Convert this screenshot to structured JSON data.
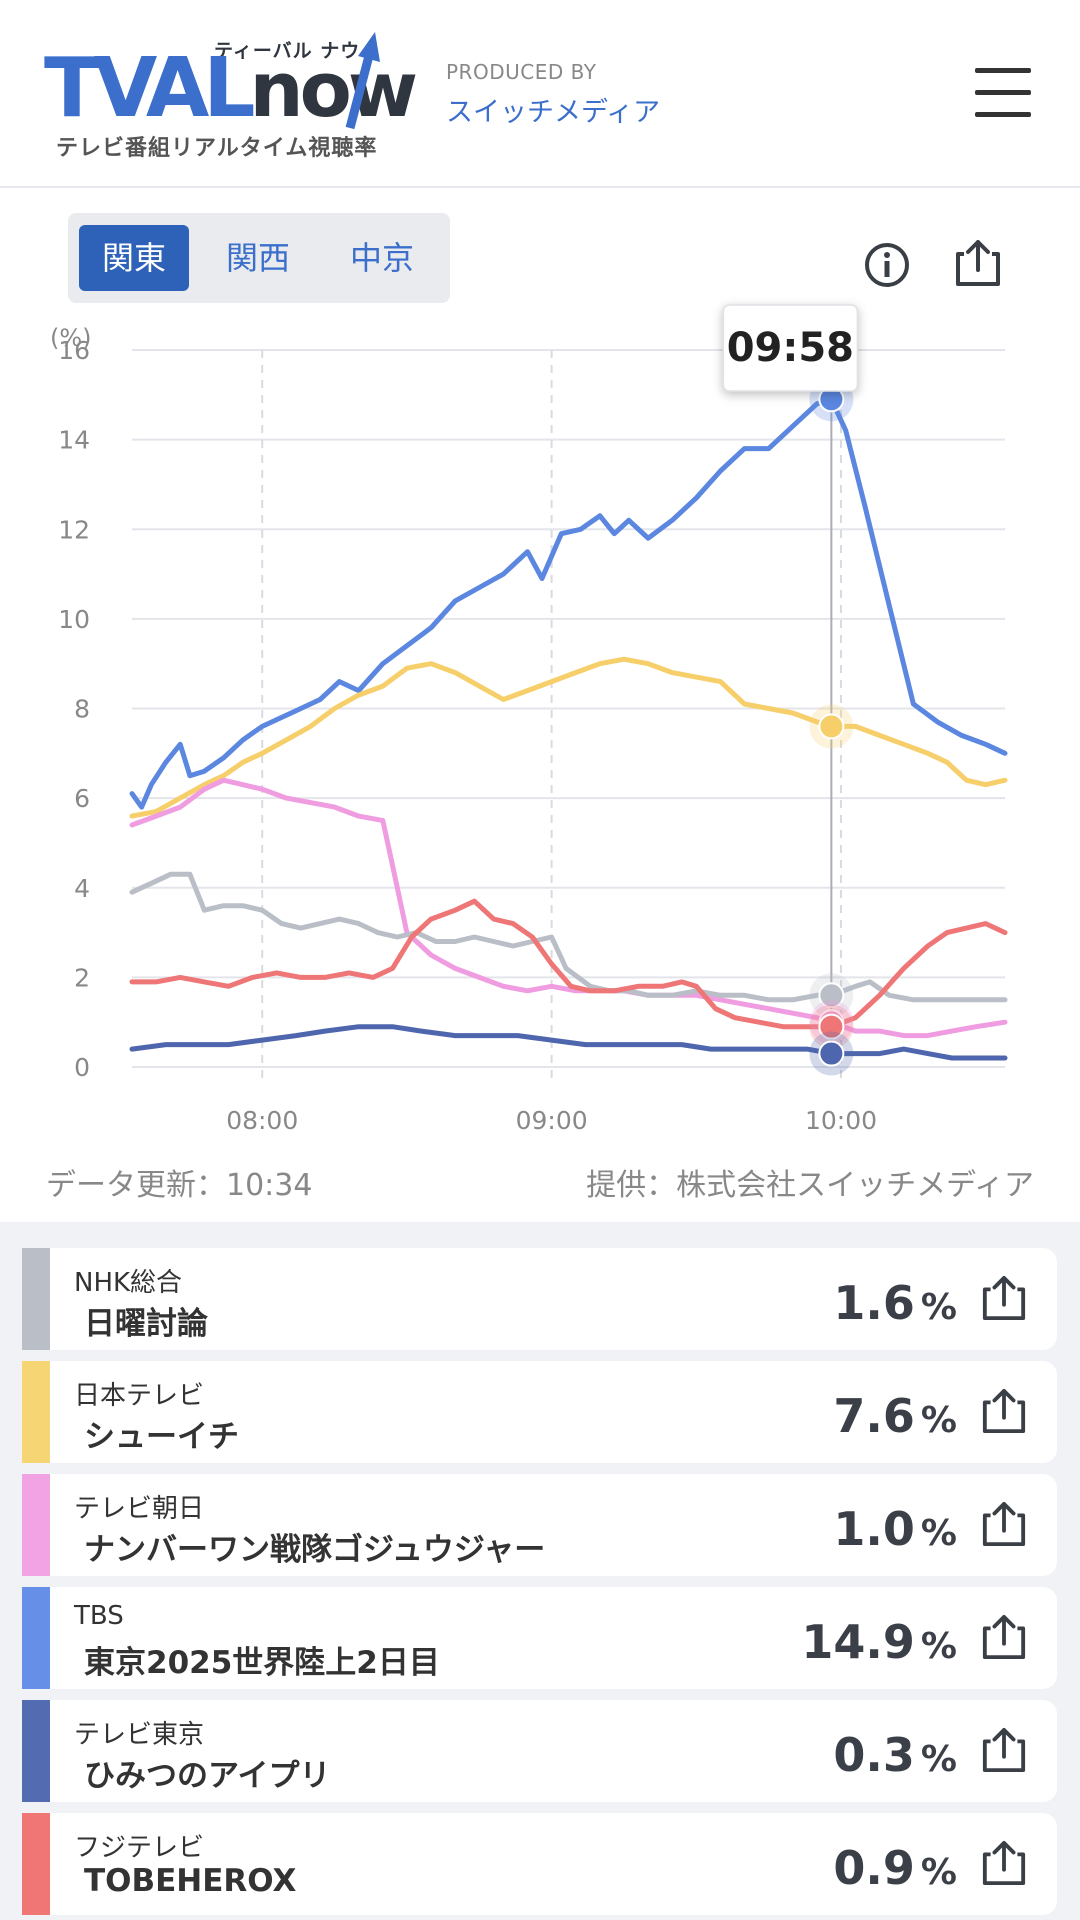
{
  "header": {
    "logo_main": "TVAL",
    "logo_now": "now",
    "logo_kana": "ティーバル ナウ",
    "logo_sub": "テレビ番組リアルタイム視聴率",
    "produced_by": "PRODUCED BY",
    "produced_name": "スイッチメディア"
  },
  "tabs": [
    {
      "label": "関東",
      "active": true
    },
    {
      "label": "関西",
      "active": false
    },
    {
      "label": "中京",
      "active": false
    }
  ],
  "chart_data": {
    "type": "line",
    "ylabel": "(%)",
    "ylim": [
      0,
      16
    ],
    "yticks": [
      0,
      2,
      4,
      6,
      8,
      10,
      12,
      14,
      16
    ],
    "xlim": [
      "07:33",
      "10:34"
    ],
    "xticks": [
      "08:00",
      "09:00",
      "10:00"
    ],
    "tooltip_time": "09:58",
    "grid": true,
    "series": [
      {
        "name": "TBS",
        "color": "#5b87e0",
        "points": [
          [
            "07:33",
            6.1
          ],
          [
            "07:35",
            5.8
          ],
          [
            "07:37",
            6.3
          ],
          [
            "07:40",
            6.8
          ],
          [
            "07:43",
            7.2
          ],
          [
            "07:45",
            6.5
          ],
          [
            "07:48",
            6.6
          ],
          [
            "07:52",
            6.9
          ],
          [
            "07:56",
            7.3
          ],
          [
            "08:00",
            7.6
          ],
          [
            "08:06",
            7.9
          ],
          [
            "08:12",
            8.2
          ],
          [
            "08:16",
            8.6
          ],
          [
            "08:20",
            8.4
          ],
          [
            "08:25",
            9.0
          ],
          [
            "08:30",
            9.4
          ],
          [
            "08:35",
            9.8
          ],
          [
            "08:40",
            10.4
          ],
          [
            "08:45",
            10.7
          ],
          [
            "08:50",
            11.0
          ],
          [
            "08:55",
            11.5
          ],
          [
            "08:58",
            10.9
          ],
          [
            "09:02",
            11.9
          ],
          [
            "09:06",
            12.0
          ],
          [
            "09:10",
            12.3
          ],
          [
            "09:13",
            11.9
          ],
          [
            "09:16",
            12.2
          ],
          [
            "09:20",
            11.8
          ],
          [
            "09:25",
            12.2
          ],
          [
            "09:30",
            12.7
          ],
          [
            "09:35",
            13.3
          ],
          [
            "09:40",
            13.8
          ],
          [
            "09:45",
            13.8
          ],
          [
            "09:50",
            14.3
          ],
          [
            "09:55",
            14.8
          ],
          [
            "09:58",
            14.9
          ],
          [
            "10:01",
            14.2
          ],
          [
            "10:05",
            12.5
          ],
          [
            "10:10",
            10.3
          ],
          [
            "10:15",
            8.1
          ],
          [
            "10:20",
            7.7
          ],
          [
            "10:25",
            7.4
          ],
          [
            "10:30",
            7.2
          ],
          [
            "10:34",
            7.0
          ]
        ]
      },
      {
        "name": "日本テレビ",
        "color": "#f6cf6b",
        "points": [
          [
            "07:33",
            5.6
          ],
          [
            "07:38",
            5.7
          ],
          [
            "07:43",
            6.0
          ],
          [
            "07:48",
            6.3
          ],
          [
            "07:52",
            6.5
          ],
          [
            "07:56",
            6.8
          ],
          [
            "08:00",
            7.0
          ],
          [
            "08:05",
            7.3
          ],
          [
            "08:10",
            7.6
          ],
          [
            "08:15",
            8.0
          ],
          [
            "08:20",
            8.3
          ],
          [
            "08:25",
            8.5
          ],
          [
            "08:30",
            8.9
          ],
          [
            "08:35",
            9.0
          ],
          [
            "08:40",
            8.8
          ],
          [
            "08:45",
            8.5
          ],
          [
            "08:50",
            8.2
          ],
          [
            "08:55",
            8.4
          ],
          [
            "09:00",
            8.6
          ],
          [
            "09:05",
            8.8
          ],
          [
            "09:10",
            9.0
          ],
          [
            "09:15",
            9.1
          ],
          [
            "09:20",
            9.0
          ],
          [
            "09:25",
            8.8
          ],
          [
            "09:30",
            8.7
          ],
          [
            "09:35",
            8.6
          ],
          [
            "09:40",
            8.1
          ],
          [
            "09:45",
            8.0
          ],
          [
            "09:50",
            7.9
          ],
          [
            "09:55",
            7.7
          ],
          [
            "09:58",
            7.6
          ],
          [
            "10:03",
            7.6
          ],
          [
            "10:08",
            7.4
          ],
          [
            "10:13",
            7.2
          ],
          [
            "10:18",
            7.0
          ],
          [
            "10:22",
            6.8
          ],
          [
            "10:26",
            6.4
          ],
          [
            "10:30",
            6.3
          ],
          [
            "10:34",
            6.4
          ]
        ]
      },
      {
        "name": "テレビ朝日",
        "color": "#ef9de0",
        "points": [
          [
            "07:33",
            5.4
          ],
          [
            "07:38",
            5.6
          ],
          [
            "07:43",
            5.8
          ],
          [
            "07:48",
            6.2
          ],
          [
            "07:52",
            6.4
          ],
          [
            "07:56",
            6.3
          ],
          [
            "08:00",
            6.2
          ],
          [
            "08:05",
            6.0
          ],
          [
            "08:10",
            5.9
          ],
          [
            "08:15",
            5.8
          ],
          [
            "08:20",
            5.6
          ],
          [
            "08:25",
            5.5
          ],
          [
            "08:27",
            4.5
          ],
          [
            "08:30",
            3.0
          ],
          [
            "08:35",
            2.5
          ],
          [
            "08:40",
            2.2
          ],
          [
            "08:45",
            2.0
          ],
          [
            "08:50",
            1.8
          ],
          [
            "08:55",
            1.7
          ],
          [
            "09:00",
            1.8
          ],
          [
            "09:05",
            1.7
          ],
          [
            "09:10",
            1.7
          ],
          [
            "09:15",
            1.7
          ],
          [
            "09:20",
            1.6
          ],
          [
            "09:25",
            1.6
          ],
          [
            "09:30",
            1.6
          ],
          [
            "09:35",
            1.5
          ],
          [
            "09:40",
            1.4
          ],
          [
            "09:45",
            1.3
          ],
          [
            "09:50",
            1.2
          ],
          [
            "09:55",
            1.1
          ],
          [
            "09:58",
            1.0
          ],
          [
            "10:03",
            0.8
          ],
          [
            "10:08",
            0.8
          ],
          [
            "10:13",
            0.7
          ],
          [
            "10:18",
            0.7
          ],
          [
            "10:23",
            0.8
          ],
          [
            "10:28",
            0.9
          ],
          [
            "10:34",
            1.0
          ]
        ]
      },
      {
        "name": "NHK総合",
        "color": "#b9bec7",
        "points": [
          [
            "07:33",
            3.9
          ],
          [
            "07:37",
            4.1
          ],
          [
            "07:41",
            4.3
          ],
          [
            "07:45",
            4.3
          ],
          [
            "07:48",
            3.5
          ],
          [
            "07:52",
            3.6
          ],
          [
            "07:56",
            3.6
          ],
          [
            "08:00",
            3.5
          ],
          [
            "08:04",
            3.2
          ],
          [
            "08:08",
            3.1
          ],
          [
            "08:12",
            3.2
          ],
          [
            "08:16",
            3.3
          ],
          [
            "08:20",
            3.2
          ],
          [
            "08:24",
            3.0
          ],
          [
            "08:28",
            2.9
          ],
          [
            "08:32",
            3.0
          ],
          [
            "08:36",
            2.8
          ],
          [
            "08:40",
            2.8
          ],
          [
            "08:44",
            2.9
          ],
          [
            "08:48",
            2.8
          ],
          [
            "08:52",
            2.7
          ],
          [
            "08:56",
            2.8
          ],
          [
            "09:00",
            2.9
          ],
          [
            "09:03",
            2.2
          ],
          [
            "09:08",
            1.8
          ],
          [
            "09:12",
            1.7
          ],
          [
            "09:16",
            1.7
          ],
          [
            "09:20",
            1.6
          ],
          [
            "09:25",
            1.6
          ],
          [
            "09:30",
            1.7
          ],
          [
            "09:35",
            1.6
          ],
          [
            "09:40",
            1.6
          ],
          [
            "09:45",
            1.5
          ],
          [
            "09:50",
            1.5
          ],
          [
            "09:55",
            1.6
          ],
          [
            "09:58",
            1.6
          ],
          [
            "10:03",
            1.8
          ],
          [
            "10:06",
            1.9
          ],
          [
            "10:10",
            1.6
          ],
          [
            "10:15",
            1.5
          ],
          [
            "10:20",
            1.5
          ],
          [
            "10:25",
            1.5
          ],
          [
            "10:30",
            1.5
          ],
          [
            "10:34",
            1.5
          ]
        ]
      },
      {
        "name": "フジテレビ",
        "color": "#ee7676",
        "points": [
          [
            "07:33",
            1.9
          ],
          [
            "07:38",
            1.9
          ],
          [
            "07:43",
            2.0
          ],
          [
            "07:48",
            1.9
          ],
          [
            "07:53",
            1.8
          ],
          [
            "07:58",
            2.0
          ],
          [
            "08:03",
            2.1
          ],
          [
            "08:08",
            2.0
          ],
          [
            "08:13",
            2.0
          ],
          [
            "08:18",
            2.1
          ],
          [
            "08:23",
            2.0
          ],
          [
            "08:27",
            2.2
          ],
          [
            "08:31",
            2.9
          ],
          [
            "08:35",
            3.3
          ],
          [
            "08:40",
            3.5
          ],
          [
            "08:44",
            3.7
          ],
          [
            "08:48",
            3.3
          ],
          [
            "08:52",
            3.2
          ],
          [
            "08:56",
            2.9
          ],
          [
            "09:00",
            2.3
          ],
          [
            "09:04",
            1.8
          ],
          [
            "09:08",
            1.7
          ],
          [
            "09:13",
            1.7
          ],
          [
            "09:18",
            1.8
          ],
          [
            "09:23",
            1.8
          ],
          [
            "09:27",
            1.9
          ],
          [
            "09:30",
            1.8
          ],
          [
            "09:34",
            1.3
          ],
          [
            "09:38",
            1.1
          ],
          [
            "09:43",
            1.0
          ],
          [
            "09:48",
            0.9
          ],
          [
            "09:53",
            0.9
          ],
          [
            "09:58",
            0.9
          ],
          [
            "10:03",
            1.1
          ],
          [
            "10:08",
            1.6
          ],
          [
            "10:13",
            2.2
          ],
          [
            "10:18",
            2.7
          ],
          [
            "10:22",
            3.0
          ],
          [
            "10:26",
            3.1
          ],
          [
            "10:30",
            3.2
          ],
          [
            "10:34",
            3.0
          ]
        ]
      },
      {
        "name": "テレビ東京",
        "color": "#4e66ad",
        "points": [
          [
            "07:33",
            0.4
          ],
          [
            "07:40",
            0.5
          ],
          [
            "07:47",
            0.5
          ],
          [
            "07:53",
            0.5
          ],
          [
            "08:00",
            0.6
          ],
          [
            "08:07",
            0.7
          ],
          [
            "08:13",
            0.8
          ],
          [
            "08:20",
            0.9
          ],
          [
            "08:27",
            0.9
          ],
          [
            "08:33",
            0.8
          ],
          [
            "08:40",
            0.7
          ],
          [
            "08:47",
            0.7
          ],
          [
            "08:53",
            0.7
          ],
          [
            "09:00",
            0.6
          ],
          [
            "09:07",
            0.5
          ],
          [
            "09:13",
            0.5
          ],
          [
            "09:20",
            0.5
          ],
          [
            "09:27",
            0.5
          ],
          [
            "09:33",
            0.4
          ],
          [
            "09:40",
            0.4
          ],
          [
            "09:47",
            0.4
          ],
          [
            "09:53",
            0.4
          ],
          [
            "09:58",
            0.3
          ],
          [
            "10:03",
            0.3
          ],
          [
            "10:08",
            0.3
          ],
          [
            "10:13",
            0.4
          ],
          [
            "10:18",
            0.3
          ],
          [
            "10:23",
            0.2
          ],
          [
            "10:28",
            0.2
          ],
          [
            "10:34",
            0.2
          ]
        ]
      }
    ],
    "markers_at_tooltip": [
      {
        "series": "TBS",
        "value": 14.9
      },
      {
        "series": "日本テレビ",
        "value": 7.6
      },
      {
        "series": "NHK総合",
        "value": 1.6
      },
      {
        "series": "テレビ朝日",
        "value": 1.0
      },
      {
        "series": "フジテレビ",
        "value": 0.9
      },
      {
        "series": "テレビ東京",
        "value": 0.3
      }
    ]
  },
  "chart_footer": {
    "updated": "データ更新：10:34",
    "provider": "提供：株式会社スイッチメディア"
  },
  "channels": [
    {
      "channel": "NHK総合",
      "program": "日曜討論",
      "rating": "1.6",
      "unit": "%",
      "color": "#b9bec7"
    },
    {
      "channel": "日本テレビ",
      "program": "シューイチ",
      "rating": "7.6",
      "unit": "%",
      "color": "#f6d574"
    },
    {
      "channel": "テレビ朝日",
      "program": "ナンバーワン戦隊ゴジュウジャー",
      "rating": "1.0",
      "unit": "%",
      "color": "#f2a3e3"
    },
    {
      "channel": "TBS",
      "program": "東京2025世界陸上2日目",
      "rating": "14.9",
      "unit": "%",
      "color": "#6690e8"
    },
    {
      "channel": "テレビ東京",
      "program": "ひみつのアイプリ",
      "rating": "0.3",
      "unit": "%",
      "color": "#536bb0"
    },
    {
      "channel": "フジテレビ",
      "program": "TOBEHEROX",
      "rating": "0.9",
      "unit": "%",
      "color": "#f07575"
    }
  ]
}
